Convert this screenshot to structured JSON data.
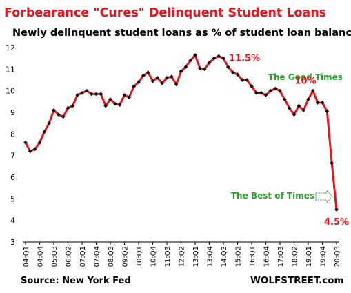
{
  "chart_data": {
    "type": "line",
    "title": "Forbearance \"Cures\" Delinquent Student Loans",
    "subtitle": "Newly delinquent student loans as % of student loan balances",
    "source": "Source: New York Fed",
    "brand": "WOLFSTREET.com",
    "ylim": [
      3,
      12
    ],
    "yticks": [
      3,
      4,
      5,
      6,
      7,
      8,
      9,
      10,
      11,
      12
    ],
    "grid": false,
    "x": [
      "04:Q1",
      "04:Q2",
      "04:Q3",
      "04:Q4",
      "05:Q1",
      "05:Q2",
      "05:Q3",
      "05:Q4",
      "06:Q1",
      "06:Q2",
      "06:Q3",
      "06:Q4",
      "07:Q1",
      "07:Q2",
      "07:Q3",
      "07:Q4",
      "08:Q1",
      "08:Q2",
      "08:Q3",
      "08:Q4",
      "09:Q1",
      "09:Q2",
      "09:Q3",
      "09:Q4",
      "10:Q1",
      "10:Q2",
      "10:Q3",
      "10:Q4",
      "11:Q1",
      "11:Q2",
      "11:Q3",
      "11:Q4",
      "12:Q1",
      "12:Q2",
      "12:Q3",
      "12:Q4",
      "13:Q1",
      "13:Q2",
      "13:Q3",
      "13:Q4",
      "14:Q1",
      "14:Q2",
      "14:Q3",
      "14:Q4",
      "15:Q1",
      "15:Q2",
      "15:Q3",
      "15:Q4",
      "16:Q1",
      "16:Q2",
      "16:Q3",
      "16:Q4",
      "17:Q1",
      "17:Q2",
      "17:Q3",
      "17:Q4",
      "18:Q1",
      "18:Q2",
      "18:Q3",
      "18:Q4",
      "19:Q1",
      "19:Q2",
      "19:Q3",
      "19:Q4",
      "20:Q1",
      "20:Q2",
      "20:Q3"
    ],
    "x_tick_labels": [
      "04:Q1",
      "04:Q4",
      "05:Q3",
      "06:Q2",
      "07:Q1",
      "07:Q4",
      "08:Q3",
      "09:Q2",
      "10:Q1",
      "10:Q4",
      "11:Q3",
      "12:Q2",
      "13:Q1",
      "13:Q4",
      "14:Q3",
      "15:Q2",
      "16:Q1",
      "16:Q4",
      "17:Q3",
      "18:Q2",
      "19:Q1",
      "19:Q4",
      "20:Q3"
    ],
    "series": [
      {
        "color": "#e8141b",
        "values": [
          7.6,
          7.2,
          7.3,
          7.6,
          8.1,
          8.5,
          9.1,
          8.9,
          8.8,
          9.2,
          9.3,
          9.8,
          9.9,
          10.0,
          9.85,
          9.85,
          9.85,
          9.3,
          9.6,
          9.4,
          9.35,
          9.8,
          9.7,
          10.2,
          10.4,
          10.7,
          10.85,
          10.45,
          10.6,
          10.35,
          10.6,
          10.65,
          10.3,
          10.9,
          11.1,
          11.4,
          11.65,
          11.05,
          11.0,
          11.3,
          11.5,
          11.6,
          11.5,
          11.1,
          10.85,
          10.75,
          10.5,
          10.5,
          10.2,
          9.9,
          9.9,
          9.8,
          10.0,
          10.1,
          10.0,
          9.6,
          9.2,
          8.9,
          9.3,
          9.1,
          9.6,
          10.0,
          9.45,
          9.45,
          9.05,
          6.65,
          4.5
        ]
      }
    ],
    "annotations": [
      {
        "text": "11.5%",
        "color": "#e8141b",
        "x": "14:Q3",
        "y": 11.5
      },
      {
        "text": "The Good Times",
        "color": "#2aa12a",
        "x": "17:Q4",
        "y": 10.5
      },
      {
        "text": "10%",
        "color": "#e8141b",
        "x": "19:Q1",
        "y": 10.0
      },
      {
        "text": "The Best of Times",
        "color": "#2aa12a",
        "x": "20:Q3",
        "y": 4.5
      },
      {
        "text": "4.5%",
        "color": "#e8141b",
        "x": "20:Q3",
        "y": 4.5
      }
    ]
  }
}
